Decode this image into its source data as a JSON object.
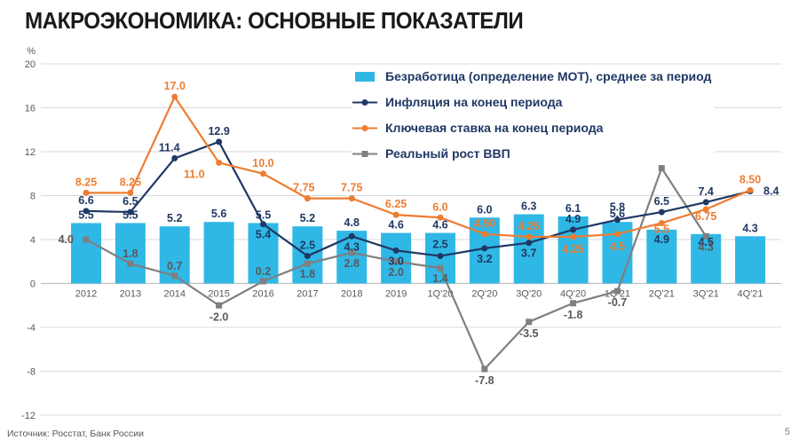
{
  "slide": {
    "title": "МАКРОЭКОНОМИКА: ОСНОВНЫЕ ПОКАЗАТЕЛИ",
    "source_note": "Источник: Росстат, Банк России",
    "page_number": "5"
  },
  "colors": {
    "bar": "#2FB8E6",
    "inflation": "#1F3864",
    "keyrate": "#ED7D31",
    "gdp": "#7F7F7F",
    "gdp_label": "#595959",
    "grid": "#D9D9D9",
    "zero_line": "#BFBFBF",
    "axis_text": "#595959",
    "legend_text": "#1F3864",
    "title_text": "#1A1A1A"
  },
  "chart_data": {
    "type": "combo: bar + 3 lines",
    "title": "МАКРОЭКОНОМИКА: ОСНОВНЫЕ ПОКАЗАТЕЛИ",
    "categories": [
      "2012",
      "2013",
      "2014",
      "2015",
      "2016",
      "2017",
      "2018",
      "2019",
      "1Q'20",
      "2Q'20",
      "3Q'20",
      "4Q'20",
      "1Q'21",
      "2Q'21",
      "3Q'21",
      "4Q'21"
    ],
    "y_axis": {
      "unit": "%",
      "min": -12,
      "max": 20,
      "step": 4,
      "ticks": [
        20,
        16,
        12,
        8,
        4,
        0,
        -4,
        -8,
        -12
      ]
    },
    "grid": "horizontal gridlines on",
    "legend_position": "top-center inside plot area",
    "series": [
      {
        "name": "Безработица (определение МОТ), среднее за период",
        "type": "bar",
        "color": "#2FB8E6",
        "values": [
          5.5,
          5.5,
          5.2,
          5.6,
          5.5,
          5.2,
          4.8,
          4.6,
          4.6,
          6.0,
          6.3,
          6.1,
          5.6,
          4.9,
          4.5,
          4.3
        ],
        "labels": [
          "5.5",
          "5.5",
          "5.2",
          "5.6",
          "5.5",
          "5.2",
          "4.8",
          "4.6",
          "4.6",
          "6.0",
          "6.3",
          "6.1",
          "5.6",
          "4.9",
          "4.5",
          "4.3"
        ]
      },
      {
        "name": "Инфляция на конец периода",
        "type": "line",
        "marker": "circle",
        "color": "#1F3864",
        "values": [
          6.6,
          6.5,
          11.4,
          12.9,
          5.4,
          2.5,
          4.3,
          3.0,
          2.5,
          3.2,
          3.7,
          4.9,
          5.8,
          6.5,
          7.4,
          8.4
        ],
        "labels": [
          "6.6",
          "6.5",
          "11.4",
          "12.9",
          "5.4",
          "2.5",
          "4.3",
          "3.0",
          "2.5",
          "3.2",
          "3.7",
          "4.9",
          "5.8",
          "6.5",
          "7.4",
          "8.4"
        ]
      },
      {
        "name": "Ключевая ставка на конец периода",
        "type": "line",
        "marker": "circle",
        "color": "#ED7D31",
        "values": [
          8.25,
          8.25,
          17.0,
          11.0,
          10.0,
          7.75,
          7.75,
          6.25,
          6.0,
          4.5,
          4.25,
          4.25,
          4.5,
          5.5,
          6.75,
          8.5
        ],
        "labels": [
          "8.25",
          "8.25",
          "17.0",
          "11.0",
          "10.0",
          "7.75",
          "7.75",
          "6.25",
          "6.0",
          "4.50",
          "4.25",
          "4.25",
          "4.5",
          "5.5",
          "6.75",
          "8.50"
        ]
      },
      {
        "name": "Реальный рост ВВП",
        "type": "line",
        "marker": "square",
        "color": "#7F7F7F",
        "values": [
          4.0,
          1.8,
          0.7,
          -2.0,
          0.2,
          1.8,
          2.8,
          2.0,
          1.4,
          -7.8,
          -3.5,
          -1.8,
          -0.7,
          10.5,
          4.3,
          null
        ],
        "labels": [
          "4.0",
          "1.8",
          "0.7",
          "-2.0",
          "0.2",
          "1.8",
          "2.8",
          "2.0",
          "1.4",
          "-7.8",
          "-3.5",
          "-1.8",
          "-0.7",
          "10.5",
          "4.3",
          ""
        ]
      }
    ]
  }
}
